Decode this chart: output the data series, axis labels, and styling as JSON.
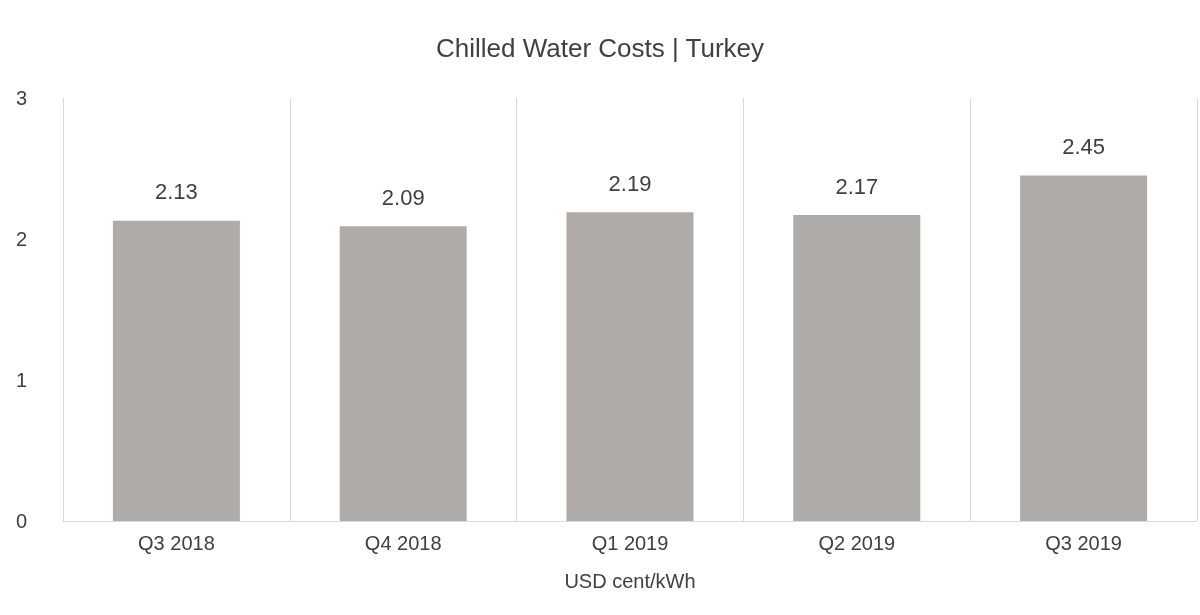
{
  "chart_data": {
    "type": "bar",
    "title": "Chilled Water Costs | Turkey",
    "xlabel": "USD cent/kWh",
    "categories": [
      "Q3 2018",
      "Q4 2018",
      "Q1 2019",
      "Q2 2019",
      "Q3 2019"
    ],
    "values": [
      2.13,
      2.09,
      2.19,
      2.17,
      2.45
    ],
    "color": "#afaba9",
    "ylim": [
      0,
      3
    ],
    "yticks": [
      0,
      1,
      2,
      3
    ],
    "grid": "x",
    "data_labels": true
  }
}
